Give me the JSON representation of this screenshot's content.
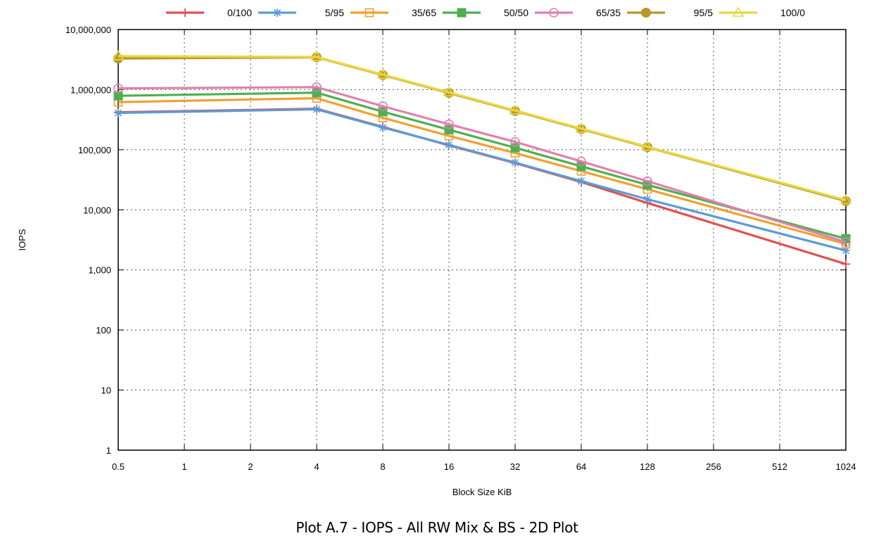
{
  "caption": "Plot A.7 - IOPS - All RW Mix & BS - 2D Plot",
  "chart_data": {
    "type": "line",
    "xlabel": "Block Size KiB",
    "ylabel": "IOPS",
    "x_scale": "log2",
    "y_scale": "log10",
    "ylim": [
      1,
      10000000
    ],
    "grid": true,
    "legend_position": "top",
    "x_ticks": [
      "0.5",
      "1",
      "2",
      "4",
      "8",
      "16",
      "32",
      "64",
      "128",
      "256",
      "512",
      "1024"
    ],
    "y_ticks": [
      {
        "value": 1,
        "label": "1"
      },
      {
        "value": 10,
        "label": "10"
      },
      {
        "value": 100,
        "label": "100"
      },
      {
        "value": 1000,
        "label": "1,000"
      },
      {
        "value": 10000,
        "label": "10,000"
      },
      {
        "value": 100000,
        "label": "100,000"
      },
      {
        "value": 1000000,
        "label": "1,000,000"
      },
      {
        "value": 10000000,
        "label": "10,000,000"
      }
    ],
    "x": [
      0.5,
      4,
      8,
      16,
      32,
      64,
      128,
      1024
    ],
    "series": [
      {
        "name": "0/100",
        "color": "#e05050",
        "marker": "plus",
        "values": [
          420000,
          480000,
          240000,
          118000,
          60000,
          29000,
          13000,
          1250
        ]
      },
      {
        "name": "5/95",
        "color": "#5b9bd5",
        "marker": "asterisk",
        "values": [
          410000,
          470000,
          235000,
          120000,
          61000,
          30000,
          15000,
          2100
        ]
      },
      {
        "name": "35/65",
        "color": "#f0a030",
        "marker": "open-square",
        "values": [
          620000,
          720000,
          340000,
          170000,
          88000,
          44000,
          22000,
          2700
        ]
      },
      {
        "name": "50/50",
        "color": "#4cb050",
        "marker": "filled-square",
        "values": [
          790000,
          890000,
          430000,
          215000,
          108000,
          53000,
          26000,
          3300
        ]
      },
      {
        "name": "65/35",
        "color": "#e080b0",
        "marker": "open-circle",
        "values": [
          1050000,
          1100000,
          530000,
          265000,
          135000,
          64000,
          30000,
          2900
        ]
      },
      {
        "name": "95/5",
        "color": "#b8962e",
        "marker": "filled-circle",
        "values": [
          3300000,
          3450000,
          1750000,
          880000,
          440000,
          220000,
          110000,
          14000
        ]
      },
      {
        "name": "100/0",
        "color": "#e8d840",
        "marker": "open-triangle",
        "values": [
          3600000,
          3500000,
          1780000,
          900000,
          450000,
          225000,
          112000,
          14500
        ]
      }
    ]
  }
}
